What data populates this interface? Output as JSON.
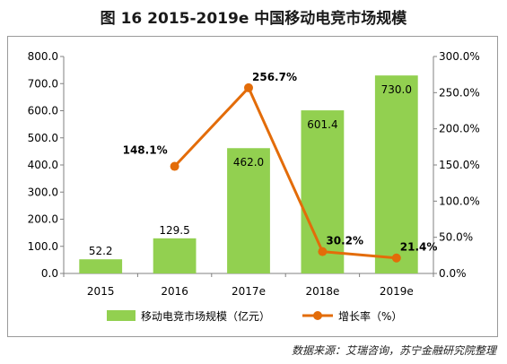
{
  "title": "图 16  2015-2019e 中国移动电竞市场规模",
  "source": "数据来源：艾瑞咨询，苏宁金融研究院整理",
  "colors": {
    "bar": "#92d050",
    "line": "#e36c09",
    "axis": "#808080",
    "grid": "#d9d9d9"
  },
  "chart_data": {
    "type": "bar",
    "categories": [
      "2015",
      "2016",
      "2017e",
      "2018e",
      "2019e"
    ],
    "series": [
      {
        "name": "移动电竞市场规模（亿元）",
        "type": "bar",
        "axis": "left",
        "values": [
          52.2,
          129.5,
          462.0,
          601.4,
          730.0
        ],
        "labels": [
          "52.2",
          "129.5",
          "462.0",
          "601.4",
          "730.0"
        ]
      },
      {
        "name": "增长率（%）",
        "type": "line",
        "axis": "right",
        "values": [
          null,
          148.1,
          256.7,
          30.2,
          21.4
        ],
        "labels": [
          "",
          "148.1%",
          "256.7%",
          "30.2%",
          "21.4%"
        ]
      }
    ],
    "ylim": [
      0,
      800
    ],
    "y2lim": [
      0,
      300
    ],
    "yticks": [
      "0.0",
      "100.0",
      "200.0",
      "300.0",
      "400.0",
      "500.0",
      "600.0",
      "700.0",
      "800.0"
    ],
    "y2ticks": [
      "0.0%",
      "50.0%",
      "100.0%",
      "150.0%",
      "200.0%",
      "250.0%",
      "300.0%"
    ],
    "legend_position": "bottom",
    "grid": false
  }
}
